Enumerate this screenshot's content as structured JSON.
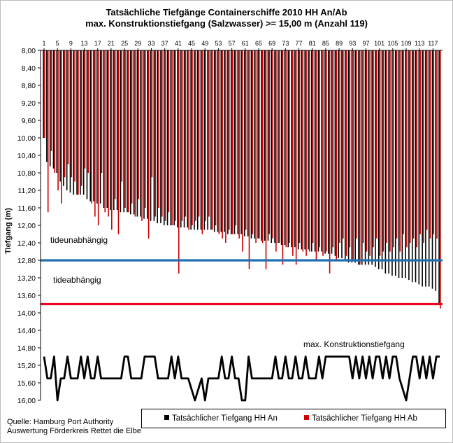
{
  "title": {
    "line1": "Tatsächliche Tiefgänge Containerschiffe 2010 HH An/Ab",
    "line2": "max. Konstruktionstiefgang (Salzwasser) >= 15,00 m (Anzahl 119)"
  },
  "source": {
    "line1": "Quelle: Hamburg Port Authority",
    "line2": "Auswertung Förderkreis Rettet die Elbe"
  },
  "colors": {
    "an": "#000000",
    "ab": "#cc0000",
    "tide_line": "#1f6fb0",
    "max_line": "#e8001c"
  },
  "chart_data": {
    "type": "bar",
    "ylabel": "Tiefgang (m)",
    "y_axis": {
      "min": 8.0,
      "max": 16.0,
      "step": 0.4,
      "inverted": true
    },
    "y_tick_labels": [
      "8,00",
      "8,40",
      "8,80",
      "9,20",
      "9,60",
      "10,00",
      "10,40",
      "10,80",
      "11,20",
      "11,60",
      "12,00",
      "12,40",
      "12,80",
      "13,20",
      "13,60",
      "14,00",
      "14,40",
      "14,80",
      "15,20",
      "15,60",
      "16,00"
    ],
    "x_tick_labels": [
      "1",
      "5",
      "9",
      "13",
      "17",
      "21",
      "25",
      "29",
      "33",
      "37",
      "41",
      "45",
      "49",
      "53",
      "57",
      "61",
      "65",
      "69",
      "73",
      "77",
      "81",
      "85",
      "89",
      "93",
      "97",
      "101",
      "105",
      "109",
      "113",
      "117"
    ],
    "ship_count": 119,
    "series": [
      {
        "name": "Tatsächlicher Tiefgang HH An",
        "color": "#000000",
        "values": [
          10.0,
          10.55,
          10.65,
          10.7,
          10.8,
          11.0,
          11.1,
          11.2,
          11.25,
          11.3,
          11.3,
          11.3,
          11.3,
          11.4,
          11.45,
          11.45,
          11.5,
          11.5,
          11.6,
          11.6,
          11.65,
          11.65,
          11.65,
          11.7,
          11.7,
          11.7,
          11.75,
          11.75,
          11.8,
          11.8,
          11.85,
          11.85,
          11.9,
          11.9,
          11.95,
          11.95,
          12.0,
          12.0,
          12.0,
          12.0,
          12.05,
          12.05,
          12.05,
          12.05,
          12.1,
          12.1,
          12.1,
          12.1,
          12.1,
          12.1,
          12.1,
          12.15,
          12.15,
          12.15,
          12.15,
          12.2,
          12.2,
          12.2,
          12.2,
          12.2,
          12.25,
          12.25,
          12.3,
          12.3,
          12.3,
          12.35,
          12.35,
          12.35,
          12.4,
          12.4,
          12.4,
          12.45,
          12.45,
          12.5,
          12.5,
          12.5,
          12.55,
          12.55,
          12.55,
          12.55,
          12.6,
          12.6,
          12.6,
          12.6,
          12.65,
          12.65,
          12.65,
          12.7,
          12.75,
          12.75,
          12.8,
          12.85,
          12.85,
          12.85,
          12.9,
          12.9,
          12.9,
          12.9,
          12.9,
          12.95,
          13.0,
          13.0,
          13.1,
          13.1,
          13.15,
          13.15,
          13.2,
          13.2,
          13.2,
          13.25,
          13.3,
          13.3,
          13.35,
          13.4,
          13.4,
          13.4,
          13.45,
          13.5,
          13.8
        ]
      },
      {
        "name": "Tatsächlicher Tiefgang HH Ab",
        "color": "#cc0000",
        "values": [
          10.0,
          11.7,
          10.3,
          10.8,
          11.2,
          11.5,
          10.9,
          10.6,
          10.9,
          11.0,
          11.3,
          11.1,
          10.7,
          10.8,
          11.5,
          11.8,
          12.0,
          10.8,
          11.7,
          11.8,
          12.1,
          11.4,
          12.2,
          11.0,
          11.6,
          11.7,
          11.5,
          11.8,
          11.4,
          11.9,
          11.6,
          12.3,
          10.9,
          11.8,
          11.6,
          11.8,
          11.9,
          11.7,
          12.0,
          11.9,
          13.1,
          11.9,
          11.8,
          12.1,
          12.0,
          11.9,
          11.8,
          12.2,
          11.9,
          11.8,
          12.1,
          12.0,
          12.2,
          12.3,
          12.4,
          12.1,
          12.2,
          12.0,
          12.3,
          12.6,
          12.1,
          13.0,
          12.2,
          12.4,
          12.3,
          12.4,
          13.0,
          12.2,
          12.3,
          12.6,
          12.4,
          12.9,
          12.5,
          12.4,
          12.7,
          12.9,
          12.4,
          12.6,
          12.7,
          12.6,
          12.4,
          12.8,
          12.5,
          12.7,
          12.6,
          13.1,
          12.5,
          12.8,
          12.4,
          12.3,
          12.7,
          12.5,
          12.8,
          12.3,
          12.9,
          12.4,
          12.6,
          12.7,
          12.5,
          12.3,
          12.7,
          12.6,
          12.4,
          12.6,
          12.5,
          12.3,
          12.6,
          12.2,
          12.5,
          12.4,
          12.3,
          12.5,
          12.2,
          12.4,
          12.1,
          12.3,
          12.2,
          12.3,
          13.9
        ]
      },
      {
        "name": "max. Konstruktionstiefgang",
        "color": "#000000",
        "values": [
          15.0,
          15.5,
          15.5,
          15.0,
          16.0,
          15.5,
          15.5,
          15.0,
          15.5,
          15.5,
          15.5,
          15.0,
          15.5,
          15.0,
          15.5,
          15.5,
          15.0,
          15.5,
          15.5,
          15.5,
          15.5,
          15.5,
          15.5,
          15.5,
          15.0,
          15.0,
          15.5,
          15.5,
          15.5,
          15.5,
          15.0,
          15.0,
          15.0,
          15.0,
          15.5,
          15.5,
          15.5,
          15.5,
          15.0,
          15.5,
          15.0,
          15.5,
          15.5,
          15.5,
          15.75,
          16.0,
          15.75,
          15.5,
          16.0,
          15.5,
          15.5,
          15.5,
          15.5,
          15.0,
          15.5,
          15.5,
          15.0,
          15.5,
          15.5,
          16.0,
          16.0,
          15.0,
          15.5,
          15.5,
          15.5,
          15.5,
          15.5,
          15.5,
          15.5,
          15.0,
          15.5,
          15.5,
          15.0,
          15.5,
          15.5,
          15.0,
          15.5,
          15.5,
          15.0,
          15.5,
          15.5,
          15.5,
          15.0,
          15.5,
          15.0,
          15.0,
          15.0,
          15.0,
          15.0,
          15.0,
          15.0,
          15.0,
          15.5,
          15.0,
          15.5,
          15.0,
          15.5,
          15.0,
          15.5,
          15.0,
          15.0,
          15.5,
          15.0,
          15.5,
          15.0,
          15.0,
          15.5,
          15.75,
          16.0,
          15.5,
          15.0,
          15.0,
          15.5,
          15.0,
          15.5,
          15.0,
          15.5,
          15.0,
          15.0
        ]
      }
    ],
    "reference_lines": [
      {
        "value": 12.8,
        "color": "#1f6fb0"
      },
      {
        "value": 13.8,
        "color": "#e8001c"
      }
    ],
    "annotations": {
      "tide_independent": "tideunabhängig",
      "tide_dependent": "tideabhängig",
      "max_design": "max. Konstruktionstiefgang"
    },
    "grid": false,
    "legend": {
      "placement": "bottom",
      "items": [
        "Tatsächlicher Tiefgang HH An",
        "Tatsächlicher Tiefgang HH Ab"
      ]
    }
  }
}
